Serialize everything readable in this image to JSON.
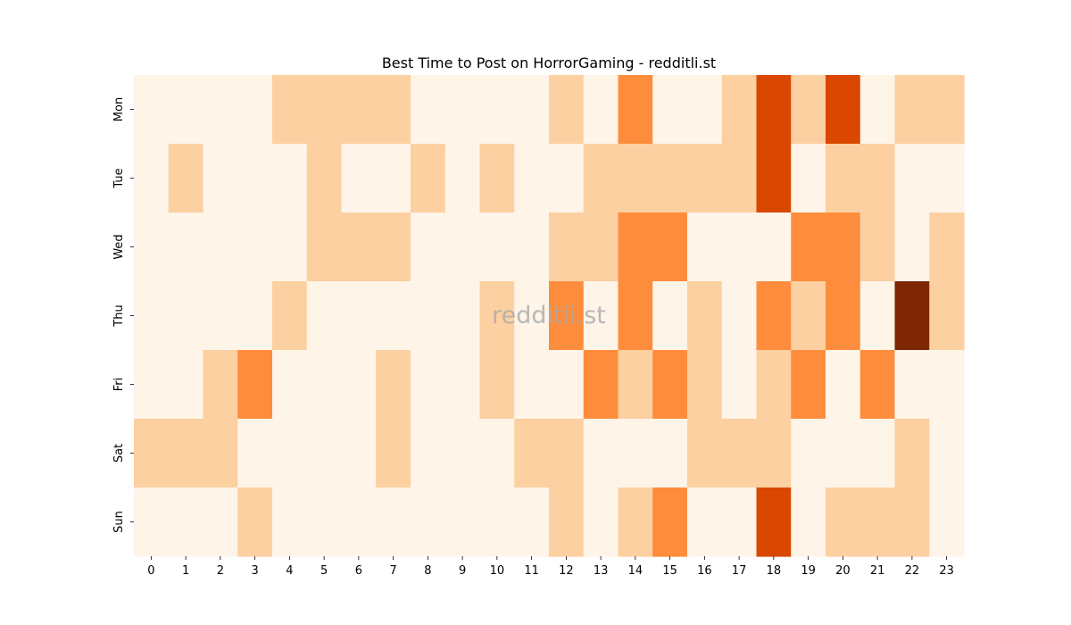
{
  "chart_data": {
    "type": "heatmap",
    "title": "Best Time to Post on HorrorGaming - redditli.st",
    "watermark": "redditli.st",
    "xlabel": "",
    "ylabel": "",
    "x": [
      "0",
      "1",
      "2",
      "3",
      "4",
      "5",
      "6",
      "7",
      "8",
      "9",
      "10",
      "11",
      "12",
      "13",
      "14",
      "15",
      "16",
      "17",
      "18",
      "19",
      "20",
      "21",
      "22",
      "23"
    ],
    "y": [
      "Mon",
      "Tue",
      "Wed",
      "Thu",
      "Fri",
      "Sat",
      "Sun"
    ],
    "colorscale": [
      "#fef4e8",
      "#fcd0a1",
      "#fd8d3c",
      "#d94701",
      "#7f2704"
    ],
    "values": [
      [
        0,
        0,
        0,
        0,
        1,
        1,
        1,
        1,
        0,
        0,
        0,
        0,
        1,
        0,
        2,
        0,
        0,
        1,
        3,
        1,
        3,
        0,
        1,
        1
      ],
      [
        0,
        1,
        0,
        0,
        0,
        1,
        0,
        0,
        1,
        0,
        1,
        0,
        0,
        1,
        1,
        1,
        1,
        1,
        3,
        0,
        1,
        1,
        0,
        0
      ],
      [
        0,
        0,
        0,
        0,
        0,
        1,
        1,
        1,
        0,
        0,
        0,
        0,
        1,
        1,
        2,
        2,
        0,
        0,
        0,
        2,
        2,
        1,
        0,
        1
      ],
      [
        0,
        0,
        0,
        0,
        1,
        0,
        0,
        0,
        0,
        0,
        1,
        0,
        2,
        0,
        2,
        0,
        1,
        0,
        2,
        1,
        2,
        0,
        4,
        1
      ],
      [
        0,
        0,
        1,
        2,
        0,
        0,
        0,
        1,
        0,
        0,
        1,
        0,
        0,
        2,
        1,
        2,
        1,
        0,
        1,
        2,
        0,
        2,
        0,
        0
      ],
      [
        1,
        1,
        1,
        0,
        0,
        0,
        0,
        1,
        0,
        0,
        0,
        1,
        1,
        0,
        0,
        0,
        1,
        1,
        1,
        0,
        0,
        0,
        1,
        0
      ],
      [
        0,
        0,
        0,
        1,
        0,
        0,
        0,
        0,
        0,
        0,
        0,
        0,
        1,
        0,
        1,
        2,
        0,
        0,
        3,
        0,
        1,
        1,
        1,
        0
      ]
    ]
  }
}
